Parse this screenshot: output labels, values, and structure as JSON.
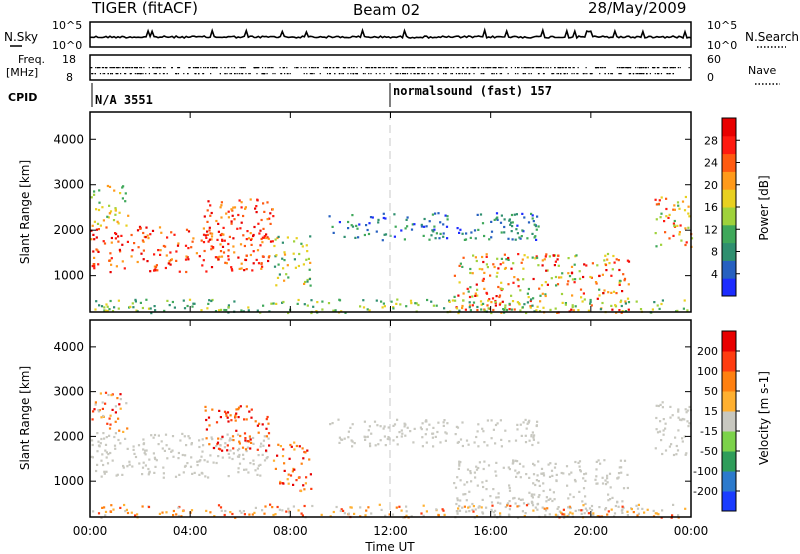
{
  "header": {
    "title": "TIGER (fitACF)",
    "beam": "Beam 02",
    "date": "28/May/2009"
  },
  "top_strip": {
    "left_label": "N.Sky",
    "left_ticks": [
      "10^5",
      "10^0"
    ],
    "right_ticks": [
      "10^5",
      "10^0"
    ],
    "right_label": "N.Search"
  },
  "freq_strip": {
    "left_label_1": "Freq.",
    "left_label_2": "[MHz]",
    "left_ticks": [
      "18",
      "8"
    ],
    "right_ticks": [
      "60",
      "0"
    ],
    "right_label": "Nave"
  },
  "cpid": {
    "label": "CPID",
    "seg1": "N/A 3551",
    "seg2": "normalsound (fast) 157"
  },
  "chart_data": [
    {
      "type": "heatmap",
      "name": "power-panel",
      "ylabel": "Slant Range [km]",
      "ylim": [
        200,
        4600
      ],
      "yticks": [
        1000,
        2000,
        3000,
        4000
      ],
      "xlim_hours": [
        0,
        24
      ],
      "colorbar": {
        "label": "Power [dB]",
        "ticks": [
          "4",
          "8",
          "12",
          "16",
          "20",
          "24",
          "28"
        ],
        "colors": [
          "#1c2cff",
          "#2660c0",
          "#2f8f6f",
          "#3fa85a",
          "#9fd23b",
          "#e8d020",
          "#ff9a1a",
          "#ff5a10",
          "#ff1a10",
          "#e80000"
        ]
      }
    },
    {
      "type": "heatmap",
      "name": "velocity-panel",
      "ylabel": "Slant Range [km]",
      "ylim": [
        200,
        4600
      ],
      "yticks": [
        1000,
        2000,
        3000,
        4000
      ],
      "xlim_hours": [
        0,
        24
      ],
      "colorbar": {
        "label": "Velocity [m s-1]",
        "ticks": [
          "200",
          "100",
          "50",
          "15",
          "-15",
          "-50",
          "-100",
          "-200"
        ],
        "colors": [
          "#1a3cff",
          "#2c7acc",
          "#2f9d5a",
          "#7cd24a",
          "#c8c8c0",
          "#ffb030",
          "#ff8010",
          "#ff3c10",
          "#e80000"
        ]
      }
    }
  ],
  "x_axis": {
    "ticks": [
      "00:00",
      "04:00",
      "08:00",
      "12:00",
      "16:00",
      "20:00",
      "00:00"
    ],
    "label": "Time UT"
  }
}
